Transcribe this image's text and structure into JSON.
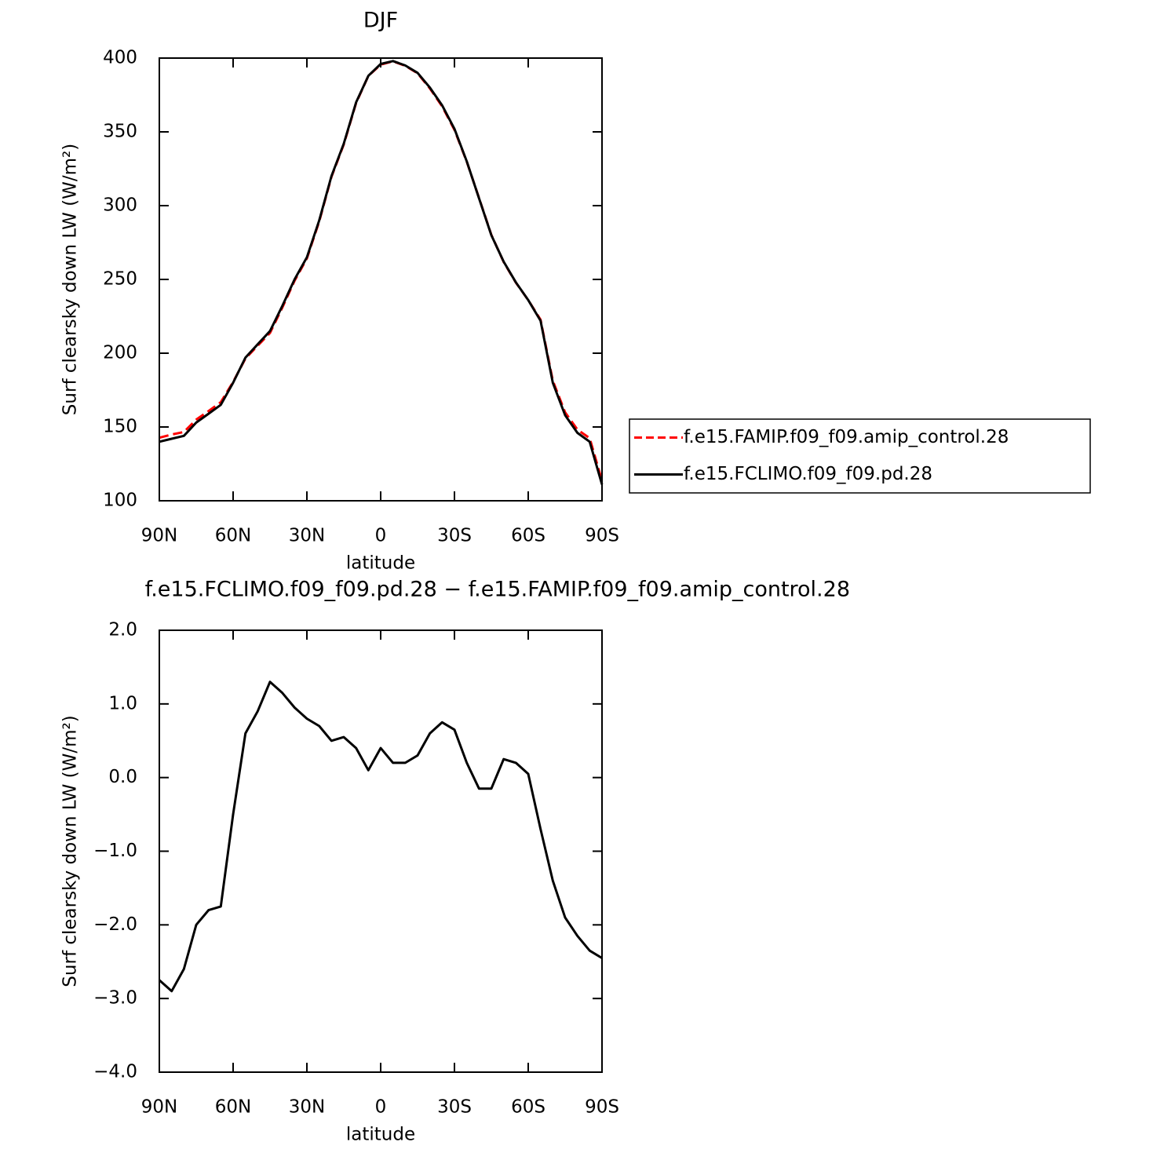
{
  "chart_data": [
    {
      "type": "line",
      "title": "DJF",
      "xlabel": "latitude",
      "ylabel": "Surf clearsky down LW (W/m²)",
      "x": [
        90,
        85,
        80,
        75,
        70,
        65,
        60,
        55,
        50,
        45,
        40,
        35,
        30,
        25,
        20,
        15,
        10,
        5,
        0,
        -5,
        -10,
        -15,
        -20,
        -25,
        -30,
        -35,
        -40,
        -45,
        -50,
        -55,
        -60,
        -65,
        -70,
        -75,
        -80,
        -85,
        -90
      ],
      "series": [
        {
          "name": "f.e15.FAMIP.f09_f09.amip_control.28",
          "color": "#ff0000",
          "dash": true,
          "values": [
            142.7,
            144.9,
            146.6,
            155,
            160.8,
            166.8,
            180.5,
            196.4,
            205.1,
            213.7,
            230.9,
            249.1,
            264.2,
            289.3,
            319.5,
            341.5,
            369.6,
            387.9,
            395.6,
            397.8,
            394.8,
            389.7,
            379.4,
            367.3,
            351.4,
            329.8,
            305.2,
            280.2,
            261.8,
            247.8,
            236,
            222.7,
            181.4,
            159.9,
            148.2,
            142.4,
            113.5
          ]
        },
        {
          "name": "f.e15.FCLIMO.f09_f09.pd.28",
          "color": "#000000",
          "dash": false,
          "values": [
            140,
            142,
            144,
            153,
            159,
            165,
            180,
            197,
            206,
            215,
            232,
            250,
            265,
            290,
            320,
            342,
            370,
            388,
            396,
            398,
            395,
            390,
            380,
            368,
            352,
            330,
            305,
            280,
            262,
            248,
            236,
            222,
            180,
            158,
            146,
            140,
            111
          ]
        }
      ],
      "xlim": [
        90,
        -90
      ],
      "xticks": [
        {
          "value": 90,
          "label": "90N"
        },
        {
          "value": 60,
          "label": "60N"
        },
        {
          "value": 30,
          "label": "30N"
        },
        0,
        {
          "value": -30,
          "label": "30S"
        },
        {
          "value": -60,
          "label": "60S"
        },
        {
          "value": -90,
          "label": "90S"
        }
      ],
      "ylim": [
        100,
        400
      ],
      "yticks": [
        100,
        150,
        200,
        250,
        300,
        350,
        400
      ],
      "legend": "right"
    },
    {
      "type": "line",
      "title": "f.e15.FCLIMO.f09_f09.pd.28 − f.e15.FAMIP.f09_f09.amip_control.28",
      "xlabel": "latitude",
      "ylabel": "Surf clearsky down LW (W/m²)",
      "x": [
        90,
        85,
        80,
        75,
        70,
        65,
        60,
        55,
        50,
        45,
        40,
        35,
        30,
        25,
        20,
        15,
        10,
        5,
        0,
        -5,
        -10,
        -15,
        -20,
        -25,
        -30,
        -35,
        -40,
        -45,
        -50,
        -55,
        -60,
        -65,
        -70,
        -75,
        -80,
        -85,
        -90
      ],
      "series": [
        {
          "color": "#000000",
          "dash": false,
          "values": [
            -2.75,
            -2.9,
            -2.6,
            -2.0,
            -1.8,
            -1.75,
            -0.5,
            0.6,
            0.9,
            1.3,
            1.15,
            0.95,
            0.8,
            0.7,
            0.5,
            0.55,
            0.4,
            0.1,
            0.4,
            0.2,
            0.2,
            0.3,
            0.6,
            0.75,
            0.65,
            0.2,
            -0.15,
            -0.15,
            0.25,
            0.2,
            0.05,
            -0.7,
            -1.4,
            -1.9,
            -2.15,
            -2.35,
            -2.45
          ]
        }
      ],
      "xlim": [
        90,
        -90
      ],
      "xticks": [
        {
          "value": 90,
          "label": "90N"
        },
        {
          "value": 60,
          "label": "60N"
        },
        {
          "value": 30,
          "label": "30N"
        },
        0,
        {
          "value": -30,
          "label": "30S"
        },
        {
          "value": -60,
          "label": "60S"
        },
        {
          "value": -90,
          "label": "90S"
        }
      ],
      "ylim": [
        -4,
        2
      ],
      "yticks": [
        {
          "value": -4,
          "label": "−4.0"
        },
        {
          "value": -3,
          "label": "−3.0"
        },
        {
          "value": -2,
          "label": "−2.0"
        },
        {
          "value": -1,
          "label": "−1.0"
        },
        {
          "value": 0,
          "label": "0.0"
        },
        {
          "value": 1,
          "label": "1.0"
        },
        {
          "value": 2,
          "label": "2.0"
        }
      ]
    }
  ]
}
